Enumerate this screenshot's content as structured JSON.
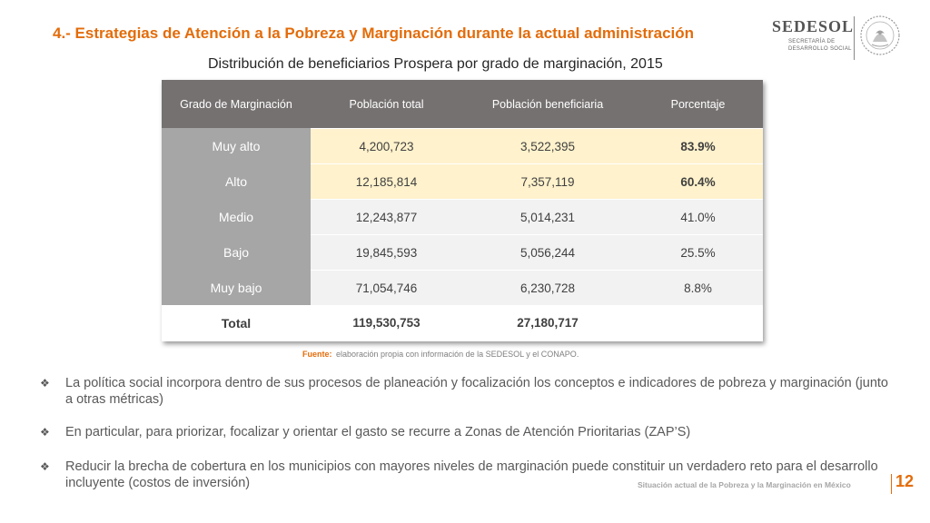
{
  "slide": {
    "title": "4.- Estrategias de Atención a la Pobreza y Marginación durante la actual administración"
  },
  "logo": {
    "name": "SEDESOL",
    "subtitle_line1": "SECRETARÍA DE",
    "subtitle_line2": "DESARROLLO SOCIAL",
    "seal_icon": "mexico-coat-of-arms-icon"
  },
  "table": {
    "caption": "Distribución de beneficiarios Prospera por grado de marginación, 2015",
    "headers": [
      "Grado de Marginación",
      "Población total",
      "Población beneficiaria",
      "Porcentaje"
    ],
    "rows": [
      {
        "grado": "Muy alto",
        "total": "4,200,723",
        "beneficiaria": "3,522,395",
        "porcentaje": "83.9%"
      },
      {
        "grado": "Alto",
        "total": "12,185,814",
        "beneficiaria": "7,357,119",
        "porcentaje": "60.4%"
      },
      {
        "grado": "Medio",
        "total": "12,243,877",
        "beneficiaria": "5,014,231",
        "porcentaje": "41.0%"
      },
      {
        "grado": "Bajo",
        "total": "19,845,593",
        "beneficiaria": "5,056,244",
        "porcentaje": "25.5%"
      },
      {
        "grado": "Muy bajo",
        "total": "71,054,746",
        "beneficiaria": "6,230,728",
        "porcentaje": "8.8%"
      }
    ],
    "total": {
      "label": "Total",
      "total": "119,530,753",
      "beneficiaria": "27,180,717",
      "porcentaje": ""
    },
    "highlight_color": "#fff2cc",
    "header_color": "#767171"
  },
  "source": {
    "label": "Fuente:",
    "text": "elaboración propia con información de la SEDESOL y el CONAPO."
  },
  "bullets": {
    "marker": "❖",
    "items": [
      "La política social incorpora dentro de sus procesos de planeación y focalización los conceptos e indicadores de pobreza y marginación (junto a otras métricas)",
      "En particular, para priorizar, focalizar y orientar el gasto se recurre a Zonas de Atención Prioritarias (ZAP’S)",
      "Reducir la brecha de cobertura en los municipios con mayores niveles de marginación puede constituir un verdadero reto para el desarrollo incluyente (costos de inversión)"
    ]
  },
  "footer": {
    "text": "Situación actual de la Pobreza y la Marginación en México",
    "page_number": "12",
    "accent_color": "#e36c0a"
  }
}
